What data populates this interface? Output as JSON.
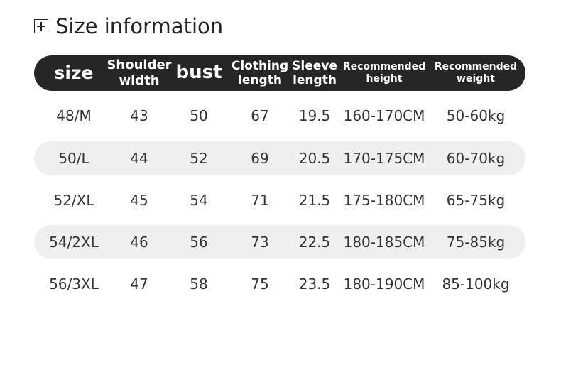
{
  "title": {
    "icon": "plus-box-icon",
    "text": "Size information"
  },
  "header": {
    "background": "#262626",
    "columns": [
      "size",
      "Shoulder\nwidth",
      "bust",
      "Clothing\nlength",
      "Sleeve\nlength",
      "Recommended\nheight",
      "Recommended\nweight"
    ]
  },
  "rows": [
    [
      "48/M",
      "43",
      "50",
      "67",
      "19.5",
      "160-170CM",
      "50-60kg"
    ],
    [
      "50/L",
      "44",
      "52",
      "69",
      "20.5",
      "170-175CM",
      "60-70kg"
    ],
    [
      "52/XL",
      "45",
      "54",
      "71",
      "21.5",
      "175-180CM",
      "65-75kg"
    ],
    [
      "54/2XL",
      "46",
      "56",
      "73",
      "22.5",
      "180-185CM",
      "75-85kg"
    ],
    [
      "56/3XL",
      "47",
      "58",
      "75",
      "23.5",
      "180-190CM",
      "85-100kg"
    ]
  ]
}
